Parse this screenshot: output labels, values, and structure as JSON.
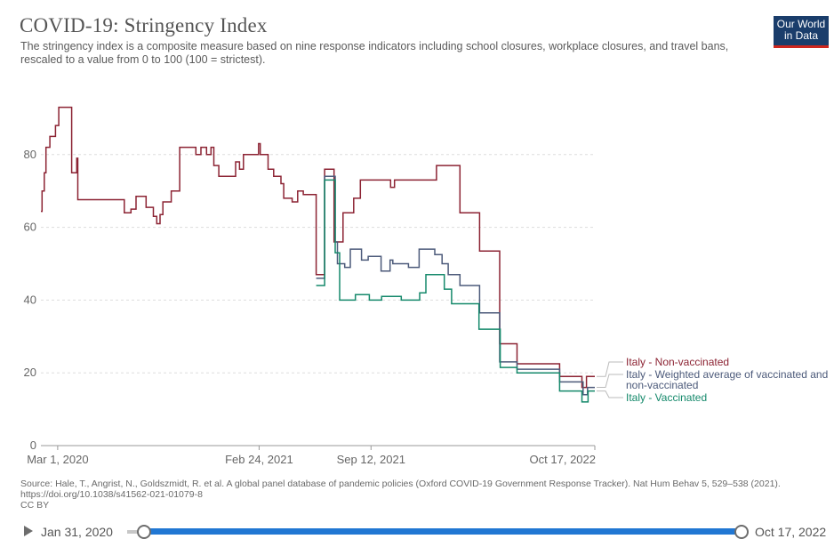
{
  "header": {
    "title": "COVID-19: Stringency Index",
    "subtitle": "The stringency index is a composite measure based on nine response indicators including school closures, workplace closures, and travel bans, rescaled to a value from 0 to 100 (100 = strictest).",
    "logo_line1": "Our World",
    "logo_line2": "in Data"
  },
  "source_text": "Source: Hale, T., Angrist, N., Goldszmidt, R. et al. A global panel database of pandemic policies (Oxford COVID-19 Government Response Tracker). Nat Hum Behav 5, 529–538 (2021). https://doi.org/10.1038/s41562-021-01079-8",
  "license": "CC BY",
  "timeline": {
    "start_label": "Jan 31, 2020",
    "end_label": "Oct 17, 2022"
  },
  "colors": {
    "non_vaccinated": "#8c2333",
    "weighted": "#4c5a7a",
    "vaccinated": "#15896b",
    "grid": "#dddddd",
    "axis_text": "#666666"
  },
  "chart_data": {
    "type": "line",
    "title": "COVID-19: Stringency Index",
    "ylim": [
      0,
      100
    ],
    "y_ticks": [
      0,
      20,
      40,
      60,
      80
    ],
    "x_ticks": [
      {
        "date": "2020-03-01",
        "label": "Mar 1, 2020"
      },
      {
        "date": "2021-02-24",
        "label": "Feb 24, 2021"
      },
      {
        "date": "2021-09-12",
        "label": "Sep 12, 2021"
      },
      {
        "date": "2022-10-17",
        "label": "Oct 17, 2022"
      }
    ],
    "x_range": [
      "2020-01-31",
      "2022-10-17"
    ],
    "grid": "horizontal dashed",
    "legend": "right, inline labels at line ends",
    "series": [
      {
        "name": "Italy - Non-vaccinated",
        "color": "#8c2333",
        "points": [
          [
            "2020-01-31",
            64.4
          ],
          [
            "2020-02-02",
            70.0
          ],
          [
            "2020-02-06",
            75.0
          ],
          [
            "2020-02-09",
            82.0
          ],
          [
            "2020-02-16",
            85.0
          ],
          [
            "2020-02-26",
            88.0
          ],
          [
            "2020-03-03",
            93.0
          ],
          [
            "2020-03-23",
            93.0
          ],
          [
            "2020-03-26",
            75.0
          ],
          [
            "2020-04-04",
            79.0
          ],
          [
            "2020-04-06",
            67.6
          ],
          [
            "2020-06-24",
            67.6
          ],
          [
            "2020-06-28",
            64.0
          ],
          [
            "2020-07-10",
            65.0
          ],
          [
            "2020-07-19",
            68.5
          ],
          [
            "2020-08-06",
            65.5
          ],
          [
            "2020-08-19",
            63.0
          ],
          [
            "2020-08-25",
            61.0
          ],
          [
            "2020-08-31",
            63.5
          ],
          [
            "2020-09-05",
            67.0
          ],
          [
            "2020-09-20",
            70.0
          ],
          [
            "2020-10-05",
            82.0
          ],
          [
            "2020-11-03",
            80.0
          ],
          [
            "2020-11-12",
            82.0
          ],
          [
            "2020-11-22",
            80.0
          ],
          [
            "2020-11-30",
            82.0
          ],
          [
            "2020-12-05",
            77.0
          ],
          [
            "2020-12-14",
            74.0
          ],
          [
            "2021-01-13",
            78.0
          ],
          [
            "2021-01-20",
            76.0
          ],
          [
            "2021-01-27",
            80.0
          ],
          [
            "2021-02-23",
            83.0
          ],
          [
            "2021-02-26",
            80.0
          ],
          [
            "2021-03-12",
            76.0
          ],
          [
            "2021-03-22",
            74.0
          ],
          [
            "2021-04-04",
            72.0
          ],
          [
            "2021-04-09",
            68.0
          ],
          [
            "2021-04-24",
            67.0
          ],
          [
            "2021-05-04",
            70.0
          ],
          [
            "2021-05-14",
            69.0
          ],
          [
            "2021-06-06",
            47.0
          ],
          [
            "2021-06-19",
            47.0
          ],
          [
            "2021-06-21",
            76.0
          ],
          [
            "2021-07-07",
            76.0
          ],
          [
            "2021-07-08",
            56.0
          ],
          [
            "2021-07-24",
            64.0
          ],
          [
            "2021-08-06",
            64.0
          ],
          [
            "2021-08-12",
            68.0
          ],
          [
            "2021-08-24",
            73.0
          ],
          [
            "2021-10-13",
            73.0
          ],
          [
            "2021-10-17",
            71.0
          ],
          [
            "2021-10-24",
            73.0
          ],
          [
            "2022-01-07",
            77.0
          ],
          [
            "2022-02-18",
            64.0
          ],
          [
            "2022-03-25",
            53.5
          ],
          [
            "2022-04-30",
            28.0
          ],
          [
            "2022-05-31",
            22.5
          ],
          [
            "2022-08-15",
            19.0
          ],
          [
            "2022-09-24",
            16.0
          ],
          [
            "2022-10-02",
            19.0
          ],
          [
            "2022-10-17",
            19.0
          ]
        ]
      },
      {
        "name": "Italy - Weighted average of vaccinated and non-vaccinated",
        "color": "#4c5a7a",
        "points": [
          [
            "2021-06-06",
            46.0
          ],
          [
            "2021-06-19",
            46.0
          ],
          [
            "2021-06-21",
            74.0
          ],
          [
            "2021-07-07",
            74.0
          ],
          [
            "2021-07-10",
            56.0
          ],
          [
            "2021-07-14",
            50.0
          ],
          [
            "2021-07-27",
            49.0
          ],
          [
            "2021-08-06",
            54.0
          ],
          [
            "2021-08-26",
            51.0
          ],
          [
            "2021-09-07",
            52.0
          ],
          [
            "2021-09-30",
            48.0
          ],
          [
            "2021-10-16",
            51.0
          ],
          [
            "2021-10-21",
            50.0
          ],
          [
            "2021-11-18",
            49.0
          ],
          [
            "2021-12-07",
            54.0
          ],
          [
            "2022-01-04",
            52.5
          ],
          [
            "2022-01-17",
            50.0
          ],
          [
            "2022-01-28",
            47.0
          ],
          [
            "2022-02-18",
            44.0
          ],
          [
            "2022-03-25",
            36.5
          ],
          [
            "2022-04-30",
            23.0
          ],
          [
            "2022-05-31",
            21.0
          ],
          [
            "2022-08-15",
            17.5
          ],
          [
            "2022-09-26",
            14.0
          ],
          [
            "2022-10-04",
            16.0
          ],
          [
            "2022-10-17",
            16.0
          ]
        ]
      },
      {
        "name": "Italy - Vaccinated",
        "color": "#15896b",
        "points": [
          [
            "2021-06-06",
            44.0
          ],
          [
            "2021-06-19",
            44.0
          ],
          [
            "2021-06-21",
            73.0
          ],
          [
            "2021-07-07",
            73.0
          ],
          [
            "2021-07-10",
            53.0
          ],
          [
            "2021-07-18",
            40.0
          ],
          [
            "2021-08-15",
            41.5
          ],
          [
            "2021-09-09",
            40.0
          ],
          [
            "2021-10-01",
            41.0
          ],
          [
            "2021-11-05",
            40.0
          ],
          [
            "2021-12-08",
            42.0
          ],
          [
            "2021-12-19",
            47.0
          ],
          [
            "2022-01-21",
            43.0
          ],
          [
            "2022-02-03",
            39.0
          ],
          [
            "2022-03-24",
            32.0
          ],
          [
            "2022-05-01",
            21.5
          ],
          [
            "2022-05-31",
            20.0
          ],
          [
            "2022-08-15",
            15.0
          ],
          [
            "2022-09-24",
            12.0
          ],
          [
            "2022-10-05",
            15.0
          ],
          [
            "2022-10-17",
            15.0
          ]
        ]
      }
    ],
    "end_labels": [
      {
        "text": "Italy - Non-vaccinated",
        "series": 0
      },
      {
        "text": "Italy - Weighted average of vaccinated and",
        "text2": "non-vaccinated",
        "series": 1
      },
      {
        "text": "Italy - Vaccinated",
        "series": 2
      }
    ]
  }
}
